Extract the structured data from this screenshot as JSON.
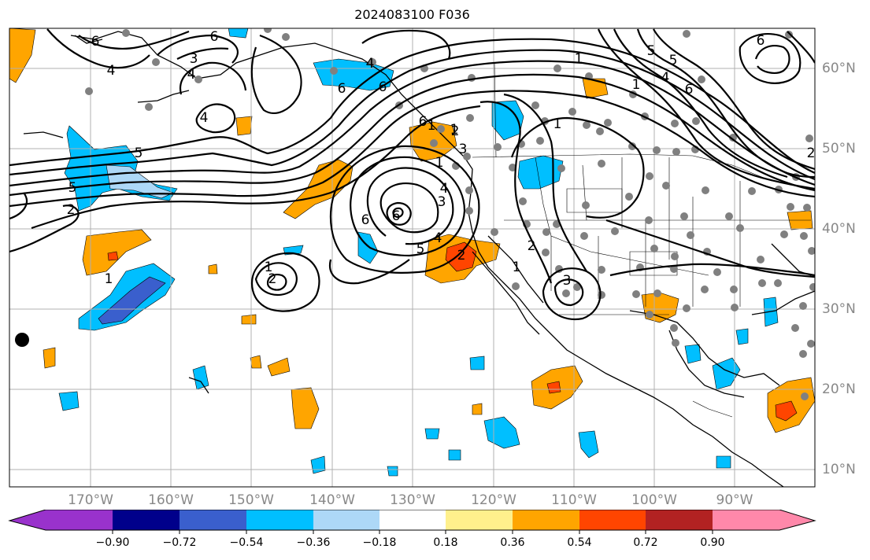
{
  "title": "2024083100 F036",
  "map": {
    "longitude_labels": [
      "170°W",
      "160°W",
      "150°W",
      "140°W",
      "130°W",
      "120°W",
      "110°W",
      "100°W",
      "90°W"
    ],
    "latitude_labels": [
      "60°N",
      "50°N",
      "40°N",
      "30°N",
      "20°N",
      "10°N"
    ],
    "contour_labels": [
      "6",
      "4",
      "3",
      "4",
      "6",
      "5",
      "4",
      "2",
      "1",
      "5",
      "6",
      "4",
      "6",
      "6",
      "1",
      "6",
      "4",
      "1",
      "5",
      "4",
      "6",
      "2",
      "1",
      "3",
      "2",
      "1",
      "2",
      "3",
      "6",
      "5",
      "2",
      "1",
      "1",
      "2",
      "1",
      "3",
      "4",
      "5",
      "6",
      "1"
    ],
    "colors": {
      "negative_light": "#add8f7",
      "negative_mid": "#00bfff",
      "negative_strong": "#3a5fcd",
      "negative_deep": "#00008b",
      "positive_light": "#fff07a",
      "positive_mid": "#ffa500",
      "positive_strong": "#ff4500",
      "station_dots": "#808080"
    }
  },
  "colorbar": {
    "tick_labels": [
      "−0.90",
      "−0.72",
      "−0.54",
      "−0.36",
      "−0.18",
      "0.18",
      "0.36",
      "0.54",
      "0.72",
      "0.90"
    ],
    "colors": [
      "#9932cc",
      "#00008b",
      "#3a5fcd",
      "#00bfff",
      "#add8f7",
      "#ffffff",
      "#fff08c",
      "#ffa500",
      "#ff4500",
      "#b22222",
      "#ff88aa"
    ]
  }
}
